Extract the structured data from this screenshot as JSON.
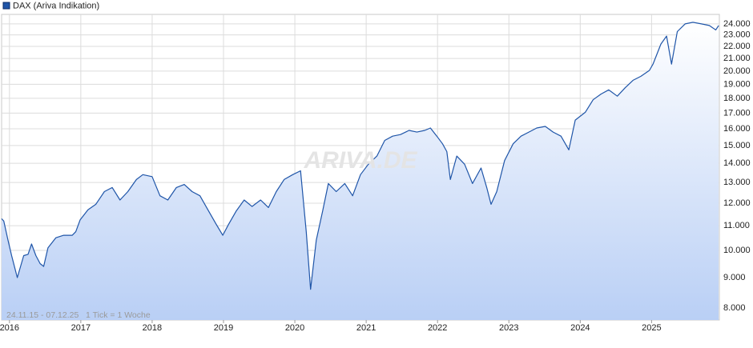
{
  "chart_data": {
    "type": "line",
    "legend": "DAX (Ariva Indikation)",
    "watermark": "ARIVA.DE",
    "footnote": "24.11.15 - 07.12.25   1 Tick = 1 Woche",
    "log_scale": true,
    "grid": true,
    "color": "#1f55a8",
    "xlim": [
      2015.89,
      2025.95
    ],
    "xticks": [
      2016,
      2017,
      2018,
      2019,
      2020,
      2021,
      2022,
      2023,
      2024,
      2025
    ],
    "ylim": [
      7640,
      24900
    ],
    "yticks": [
      {
        "value": 8000,
        "label": "8.000"
      },
      {
        "value": 9000,
        "label": "9.000"
      },
      {
        "value": 10000,
        "label": "10.000"
      },
      {
        "value": 11000,
        "label": "11.000"
      },
      {
        "value": 12000,
        "label": "12.000"
      },
      {
        "value": 13000,
        "label": "13.000"
      },
      {
        "value": 14000,
        "label": "14.000"
      },
      {
        "value": 15000,
        "label": "15.000"
      },
      {
        "value": 16000,
        "label": "16.000"
      },
      {
        "value": 17000,
        "label": "17.000"
      },
      {
        "value": 18000,
        "label": "18.000"
      },
      {
        "value": 19000,
        "label": "19.000"
      },
      {
        "value": 20000,
        "label": "20.000"
      },
      {
        "value": 21000,
        "label": "21.000"
      },
      {
        "value": 22000,
        "label": "22.000"
      },
      {
        "value": 23000,
        "label": "23.000"
      },
      {
        "value": 24000,
        "label": "24.000"
      }
    ],
    "x": [
      2015.89,
      2015.92,
      2015.98,
      2016.03,
      2016.11,
      2016.2,
      2016.26,
      2016.31,
      2016.37,
      2016.43,
      2016.48,
      2016.54,
      2016.65,
      2016.76,
      2016.88,
      2016.93,
      2016.99,
      2017.1,
      2017.21,
      2017.33,
      2017.44,
      2017.55,
      2017.66,
      2017.78,
      2017.87,
      2018.0,
      2018.11,
      2018.22,
      2018.34,
      2018.45,
      2018.56,
      2018.67,
      2018.79,
      2018.9,
      2018.99,
      2019.07,
      2019.18,
      2019.29,
      2019.4,
      2019.52,
      2019.63,
      2019.74,
      2019.85,
      2019.97,
      2020.08,
      2020.16,
      2020.22,
      2020.3,
      2020.39,
      2020.47,
      2020.58,
      2020.7,
      2020.81,
      2020.92,
      2021.03,
      2021.15,
      2021.26,
      2021.37,
      2021.48,
      2021.6,
      2021.71,
      2021.82,
      2021.9,
      2021.99,
      2022.07,
      2022.13,
      2022.18,
      2022.27,
      2022.38,
      2022.49,
      2022.61,
      2022.69,
      2022.75,
      2022.83,
      2022.94,
      2023.06,
      2023.17,
      2023.28,
      2023.39,
      2023.51,
      2023.62,
      2023.73,
      2023.84,
      2023.93,
      2024.07,
      2024.18,
      2024.29,
      2024.4,
      2024.52,
      2024.63,
      2024.74,
      2024.85,
      2024.97,
      2025.02,
      2025.13,
      2025.21,
      2025.28,
      2025.36,
      2025.47,
      2025.58,
      2025.7,
      2025.81,
      2025.9,
      2025.94
    ],
    "series": [
      {
        "name": "DAX (Ariva Indikation)",
        "color": "#1f55a8",
        "values": [
          11300,
          11200,
          10400,
          9800,
          9000,
          9800,
          9850,
          10250,
          9800,
          9500,
          9400,
          10100,
          10500,
          10600,
          10600,
          10750,
          11250,
          11700,
          11950,
          12550,
          12750,
          12150,
          12550,
          13150,
          13400,
          13300,
          12350,
          12150,
          12750,
          12900,
          12550,
          12350,
          11650,
          11050,
          10600,
          11050,
          11650,
          12150,
          11850,
          12150,
          11800,
          12550,
          13150,
          13400,
          13600,
          10750,
          8600,
          10400,
          11650,
          12950,
          12550,
          12950,
          12350,
          13400,
          13950,
          14400,
          15300,
          15550,
          15650,
          15900,
          15800,
          15900,
          16050,
          15550,
          15100,
          14650,
          13150,
          14400,
          13950,
          12950,
          13750,
          12750,
          11950,
          12550,
          14150,
          15100,
          15550,
          15800,
          16050,
          16150,
          15800,
          15550,
          14750,
          16550,
          17050,
          17900,
          18300,
          18600,
          18150,
          18750,
          19300,
          19600,
          20050,
          20550,
          22200,
          22900,
          20550,
          23300,
          24000,
          24150,
          24000,
          23850,
          23450,
          23850
        ]
      }
    ]
  }
}
